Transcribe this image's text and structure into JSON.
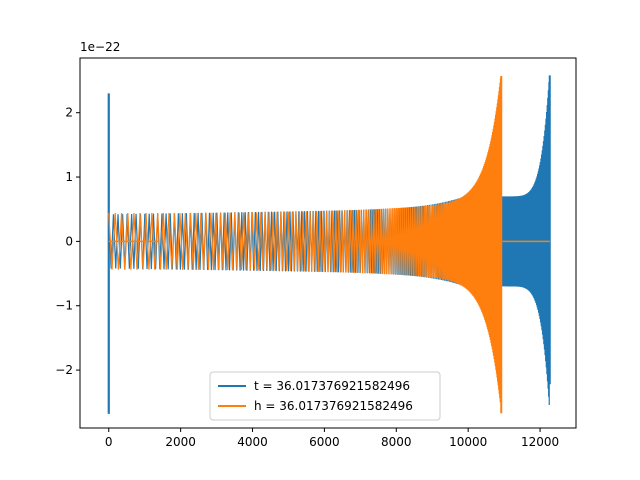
{
  "chart_data": {
    "type": "line",
    "title": "",
    "xlabel": "",
    "ylabel": "",
    "y_offset_label": "1e−22",
    "xlim": [
      -800,
      13000
    ],
    "ylim": [
      -2.9,
      2.85
    ],
    "x_ticks": [
      0,
      2000,
      4000,
      6000,
      8000,
      10000,
      12000
    ],
    "x_tick_labels": [
      "0",
      "2000",
      "4000",
      "6000",
      "8000",
      "10000",
      "12000"
    ],
    "y_ticks": [
      -2,
      -1,
      0,
      1,
      2
    ],
    "y_tick_labels": [
      "−2",
      "−1",
      "0",
      "1",
      "2"
    ],
    "grid": false,
    "legend_position": "lower-center",
    "series": [
      {
        "name": "t = 36.017376921582496",
        "color": "#1f77b4",
        "start_spike": {
          "x": 0,
          "max": 2.3,
          "min": -2.68
        },
        "osc_start": 0,
        "osc_end": 12260,
        "base_amplitude": 0.42,
        "gap_amplitude": 0.7,
        "end_spike": {
          "x": 12270,
          "max": 2.58,
          "min": -2.22
        },
        "mid_gap_x": 10920
      },
      {
        "name": "h = 36.017376921582496",
        "color": "#ff7f0e",
        "start_spike": {
          "x": 20,
          "max": 0.45,
          "min": -0.42
        },
        "flat_start": 0,
        "flat_end": 1400,
        "osc_start": 0,
        "osc_end": 10900,
        "base_amplitude": 0.44,
        "end_spike": {
          "x": 10920,
          "max": 2.57,
          "min": -2.67
        },
        "flat_after_start": 10950,
        "flat_after_end": 12270
      }
    ]
  }
}
